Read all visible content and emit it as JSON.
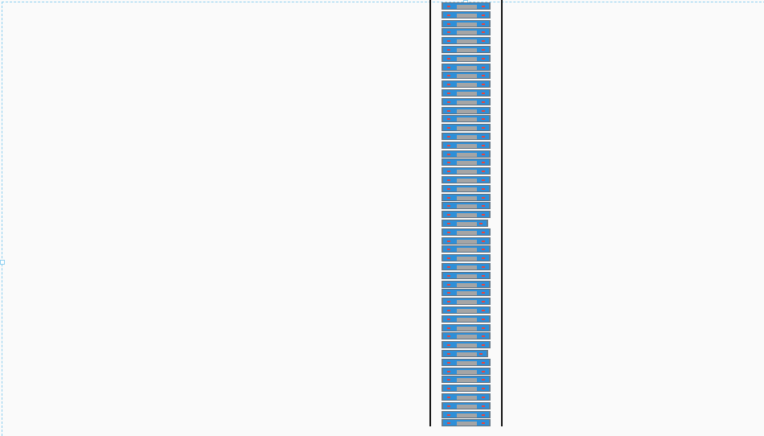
{
  "rack": {
    "unit_count": 49,
    "short_units": [
      25,
      40
    ],
    "colors": {
      "unit_body": "#2e8fd8",
      "panel": "#a5a5a5",
      "led": "#e8453c",
      "rail": "#111111",
      "selection": "#8fd0f0",
      "background": "#fafafa"
    }
  }
}
